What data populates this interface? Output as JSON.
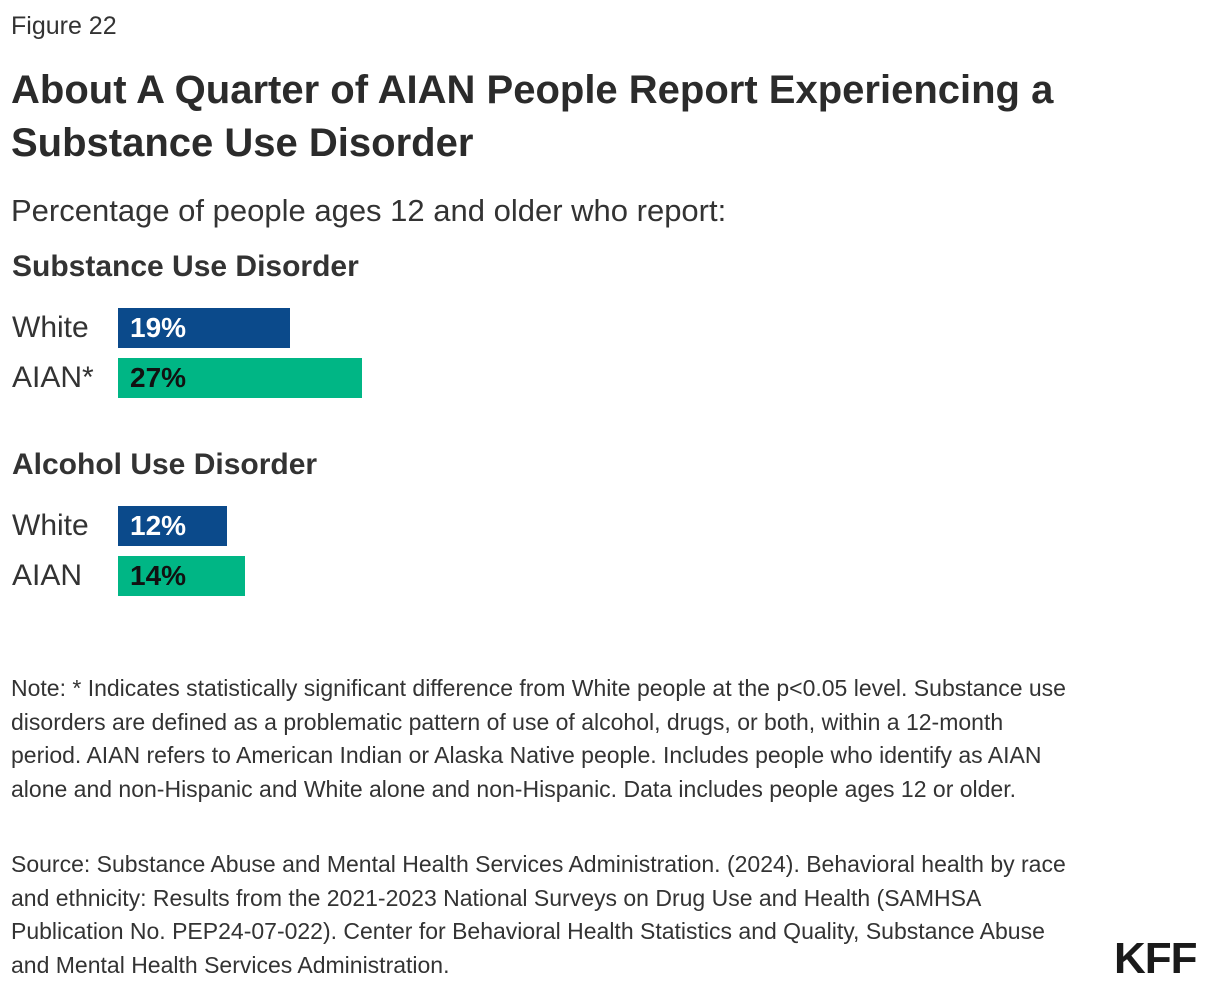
{
  "figure_label": "Figure 22",
  "title": "About A Quarter of AIAN People Report Experiencing a Substance Use Disorder",
  "subtitle": "Percentage of people ages 12 and older who report:",
  "colors": {
    "white_bar": "#0b4a8b",
    "aian_bar": "#00b685",
    "white_value_text": "#ffffff",
    "aian_value_text": "#111111"
  },
  "chart_data": {
    "type": "bar",
    "orientation": "horizontal",
    "xlim": [
      0,
      30
    ],
    "panels": [
      {
        "title": "Substance Use Disorder",
        "bars": [
          {
            "label": "White",
            "value": 19,
            "value_label": "19%",
            "series": "White"
          },
          {
            "label": "AIAN*",
            "value": 27,
            "value_label": "27%",
            "series": "AIAN"
          }
        ]
      },
      {
        "title": "Alcohol Use Disorder",
        "bars": [
          {
            "label": "White",
            "value": 12,
            "value_label": "12%",
            "series": "White"
          },
          {
            "label": "AIAN",
            "value": 14,
            "value_label": "14%",
            "series": "AIAN"
          }
        ]
      }
    ]
  },
  "note": "Note: * Indicates statistically significant difference from White people at the p<0.05 level. Substance use disorders are defined as a problematic pattern of use of alcohol, drugs, or both, within a 12-month period. AIAN refers to American Indian or Alaska Native people. Includes people who identify as AIAN alone and non-Hispanic and White alone and non-Hispanic. Data includes people ages 12 or older.",
  "source": "Source: Substance Abuse and Mental Health Services Administration. (2024). Behavioral health by race and ethnicity: Results from the 2021-2023 National Surveys on Drug Use and Health (SAMHSA Publication No. PEP24-07-022). Center for Behavioral Health Statistics and Quality, Substance Abuse and Mental Health Services Administration.",
  "logo_text": "KFF"
}
